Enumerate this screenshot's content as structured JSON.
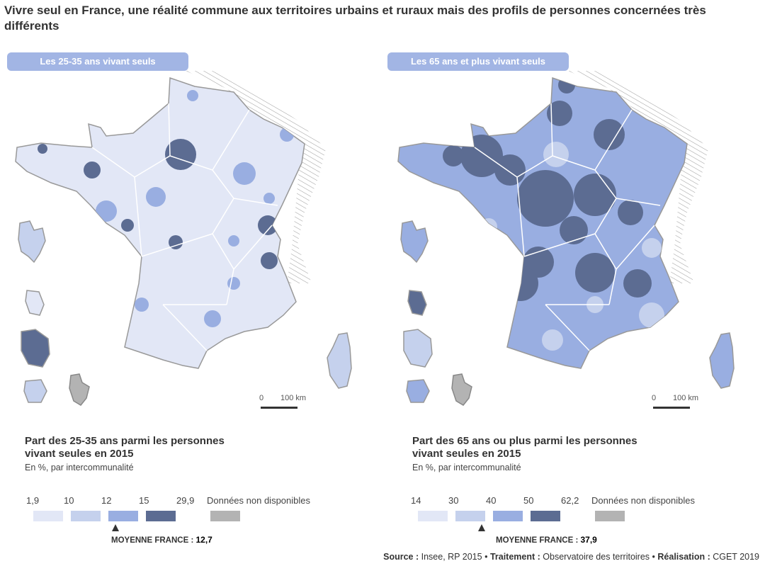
{
  "title": "Vivre seul en France, une réalité commune aux territoires urbains et ruraux mais des profils de personnes concernées très différents",
  "maps": [
    {
      "pill": "Les 25-35 ans vivant seuls",
      "legend_title_1": "Part des 25-35 ans parmi les personnes",
      "legend_title_2": "vivant seules en 2015",
      "legend_subtitle": "En %, par intercommunalité",
      "breaks": [
        "1,9",
        "10",
        "12",
        "15",
        "29,9"
      ],
      "colors": [
        "#e2e7f6",
        "#c5d1ed",
        "#99aee1",
        "#5c6c92"
      ],
      "na_label": "Données non disponibles",
      "na_color": "#b3b3b3",
      "average_label": "MOYENNE FRANCE :",
      "average_value": "12,7",
      "average_class": 2,
      "base_class": 0,
      "scale_zero": "0",
      "scale_km": "100 km"
    },
    {
      "pill": "Les 65 ans et plus vivant seuls",
      "legend_title_1": "Part des 65 ans ou plus parmi les personnes",
      "legend_title_2": "vivant seules en 2015",
      "legend_subtitle": "En %, par intercommunalité",
      "breaks": [
        "14",
        "30",
        "40",
        "50",
        "62,2"
      ],
      "colors": [
        "#e2e7f6",
        "#c5d1ed",
        "#99aee1",
        "#5c6c92"
      ],
      "na_label": "Données non disponibles",
      "na_color": "#b3b3b3",
      "average_label": "MOYENNE FRANCE :",
      "average_value": "37,9",
      "average_class": 1,
      "base_class": 2,
      "scale_zero": "0",
      "scale_km": "100 km"
    }
  ],
  "source": {
    "source_label": "Source :",
    "source_value": "Insee, RP 2015",
    "sep": "•",
    "treatment_label": "Traitement :",
    "treatment_value": "Observatoire des territoires",
    "realisation_label": "Réalisation :",
    "realisation_value": "CGET 2019"
  }
}
